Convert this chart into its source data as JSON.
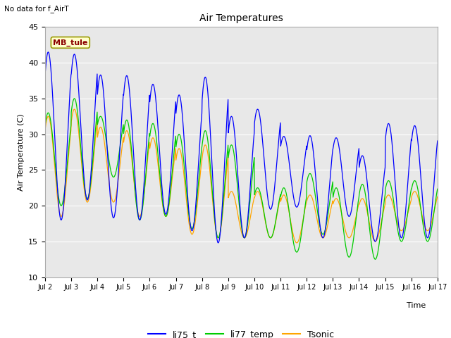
{
  "title": "Air Temperatures",
  "ylabel": "Air Temperature (C)",
  "xlabel": "Time",
  "note": "No data for f_AirT",
  "annotation_label": "MB_tule",
  "ylim": [
    10,
    45
  ],
  "fig_facecolor": "#f0f0f0",
  "plot_bg_color": "#e8e8e8",
  "legend": [
    "li75_t",
    "li77_temp",
    "Tsonic"
  ],
  "x_ticks": [
    "Jul 2",
    "Jul 3",
    "Jul 4",
    "Jul 5",
    "Jul 6",
    "Jul 7",
    "Jul 8",
    "Jul 9",
    "Jul 10",
    "Jul 11",
    "Jul 12",
    "Jul 13",
    "Jul 14",
    "Jul 15",
    "Jul 16",
    "Jul 17"
  ],
  "days": 15,
  "n_per_day": 96,
  "li75_peaks": [
    41.5,
    41.2,
    38.3,
    38.2,
    37.0,
    35.5,
    38.0,
    32.5,
    33.5,
    29.7,
    29.8,
    29.5,
    27.0,
    31.5,
    31.2
  ],
  "li75_troughs": [
    18.0,
    20.8,
    18.3,
    18.0,
    18.8,
    16.5,
    14.8,
    15.5,
    19.5,
    19.8,
    15.5,
    18.5,
    15.0,
    15.5,
    15.5
  ],
  "li77_peaks": [
    33.0,
    35.0,
    32.5,
    32.0,
    31.5,
    30.0,
    30.5,
    28.5,
    22.5,
    22.5,
    24.5,
    22.5,
    23.0,
    23.5,
    23.5
  ],
  "li77_troughs": [
    20.0,
    21.0,
    24.0,
    18.0,
    18.5,
    16.8,
    15.5,
    15.5,
    15.5,
    13.5,
    16.0,
    12.8,
    12.5,
    15.0,
    15.0
  ],
  "tsonic_peaks": [
    32.5,
    33.5,
    31.0,
    30.5,
    29.5,
    28.0,
    28.5,
    22.0,
    22.0,
    21.5,
    21.5,
    21.0,
    21.0,
    21.5,
    22.0
  ],
  "tsonic_troughs": [
    18.5,
    20.5,
    20.5,
    18.5,
    18.5,
    16.0,
    15.5,
    15.5,
    15.5,
    14.8,
    15.5,
    15.5,
    15.0,
    16.5,
    16.5
  ]
}
